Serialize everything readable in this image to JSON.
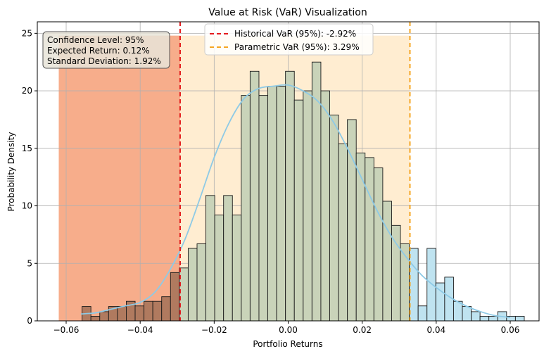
{
  "chart_data": {
    "type": "bar",
    "title": "Value at Risk (VaR) Visualization",
    "xlabel": "Portfolio Returns",
    "ylabel": "Probability Density",
    "xlim": [
      -0.0678,
      0.0678
    ],
    "ylim": [
      0,
      26
    ],
    "xticks": [
      -0.06,
      -0.04,
      -0.02,
      0.0,
      0.02,
      0.04,
      0.06
    ],
    "xtick_labels": [
      "−0.06",
      "−0.04",
      "−0.02",
      "0.00",
      "0.02",
      "0.04",
      "0.06"
    ],
    "yticks": [
      0,
      5,
      10,
      15,
      20,
      25
    ],
    "ytick_labels": [
      "0",
      "5",
      "10",
      "15",
      "20",
      "25"
    ],
    "grid": true,
    "histogram": {
      "bin_start": -0.0557,
      "bin_width": 0.00239,
      "heights": [
        1.25,
        0.4,
        0.8,
        1.25,
        1.25,
        1.7,
        1.3,
        1.7,
        1.7,
        2.1,
        4.2,
        4.6,
        6.3,
        6.7,
        10.9,
        9.2,
        10.9,
        9.2,
        19.6,
        21.7,
        19.6,
        20.4,
        20.4,
        21.7,
        19.2,
        20.0,
        22.5,
        20.0,
        17.9,
        15.4,
        17.5,
        14.6,
        14.2,
        13.3,
        10.4,
        8.3,
        6.7,
        6.3,
        1.3,
        6.3,
        3.3,
        3.8,
        1.7,
        1.25,
        0.8,
        0.4,
        0.4,
        0.8,
        0.4,
        0.4
      ],
      "color_left": "#b07a5f",
      "color_middle": "#c9d3b9",
      "color_right": "#bfe3f0",
      "edge_color": "#1a1a1a"
    },
    "kde": {
      "x": [
        -0.056,
        -0.052,
        -0.048,
        -0.044,
        -0.04,
        -0.036,
        -0.032,
        -0.028,
        -0.024,
        -0.02,
        -0.016,
        -0.012,
        -0.008,
        -0.004,
        0.0,
        0.004,
        0.008,
        0.012,
        0.016,
        0.02,
        0.024,
        0.028,
        0.032,
        0.036,
        0.04,
        0.044,
        0.048,
        0.052,
        0.056,
        0.06
      ],
      "y": [
        0.6,
        0.7,
        1.0,
        1.3,
        1.6,
        2.5,
        4.4,
        7.0,
        10.5,
        14.2,
        17.2,
        19.3,
        20.2,
        20.4,
        20.5,
        20.0,
        19.1,
        17.4,
        15.0,
        12.3,
        9.6,
        7.3,
        5.5,
        4.0,
        2.9,
        2.0,
        1.3,
        0.8,
        0.45,
        0.3
      ],
      "color": "#8ecae6"
    },
    "regions": [
      {
        "name": "loss-region",
        "x0": -0.062,
        "x1": -0.0292,
        "y1": 24.8,
        "color": "#f48a5a",
        "opacity": 0.7
      },
      {
        "name": "confidence-region",
        "x0": -0.0292,
        "x1": 0.0329,
        "y1": 24.8,
        "color": "#ffd699",
        "opacity": 0.45
      }
    ],
    "vlines": [
      {
        "name": "historical-var-line",
        "x": -0.0292,
        "color": "#e41a1c",
        "label": "Historical VaR (95%): -2.92%"
      },
      {
        "name": "parametric-var-line",
        "x": 0.0329,
        "color": "#f5a623",
        "label": "Parametric VaR (95%): 3.29%"
      }
    ],
    "legend_position": "top-center",
    "info_box": {
      "lines": [
        "Confidence Level: 95%",
        "Expected Return: 0.12%",
        "Standard Deviation: 1.92%"
      ],
      "position": "top-left"
    }
  }
}
